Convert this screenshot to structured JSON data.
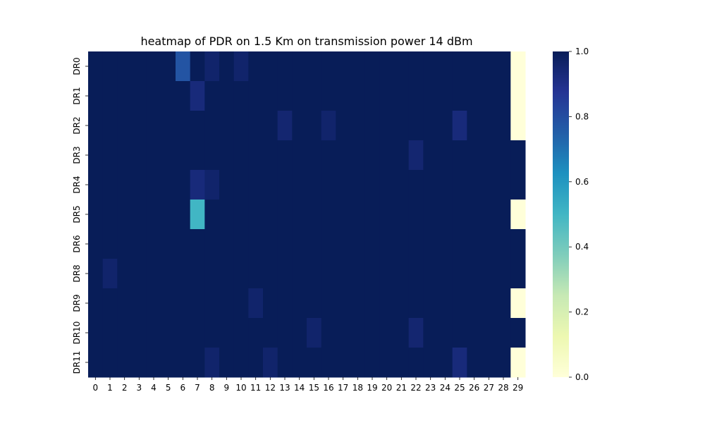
{
  "chart_data": {
    "type": "heatmap",
    "title": "heatmap of PDR on 1.5 Km on transmission power 14 dBm",
    "x_categories": [
      "0",
      "1",
      "2",
      "3",
      "4",
      "5",
      "6",
      "7",
      "8",
      "9",
      "10",
      "11",
      "12",
      "13",
      "14",
      "15",
      "16",
      "17",
      "18",
      "19",
      "20",
      "21",
      "22",
      "23",
      "24",
      "25",
      "26",
      "27",
      "28",
      "29"
    ],
    "y_categories": [
      "DR0",
      "DR1",
      "DR2",
      "DR3",
      "DR4",
      "DR5",
      "DR6",
      "DR8",
      "DR9",
      "DR10",
      "DR11"
    ],
    "values": [
      [
        1,
        1,
        1,
        1,
        1,
        1,
        0.78,
        1,
        0.96,
        1,
        0.96,
        1,
        1,
        1,
        1,
        1,
        1,
        1,
        1,
        1,
        1,
        1,
        1,
        1,
        1,
        1,
        1,
        1,
        1,
        0
      ],
      [
        1,
        1,
        1,
        1,
        1,
        1,
        1,
        0.93,
        1,
        1,
        1,
        1,
        1,
        1,
        1,
        1,
        1,
        1,
        1,
        1,
        1,
        1,
        1,
        1,
        1,
        1,
        1,
        1,
        1,
        0
      ],
      [
        1,
        1,
        1,
        1,
        1,
        1,
        1,
        1,
        1,
        1,
        1,
        1,
        1,
        0.95,
        1,
        1,
        0.96,
        1,
        1,
        1,
        1,
        1,
        1,
        1,
        1,
        0.93,
        1,
        1,
        1,
        0
      ],
      [
        1,
        1,
        1,
        1,
        1,
        1,
        1,
        1,
        1,
        1,
        1,
        1,
        1,
        1,
        1,
        1,
        1,
        1,
        1,
        1,
        1,
        1,
        0.95,
        1,
        1,
        1,
        1,
        1,
        1,
        1
      ],
      [
        1,
        1,
        1,
        1,
        1,
        1,
        1,
        0.93,
        0.96,
        1,
        1,
        1,
        1,
        1,
        1,
        1,
        1,
        1,
        1,
        1,
        1,
        1,
        1,
        1,
        1,
        1,
        1,
        1,
        1,
        1
      ],
      [
        1,
        1,
        1,
        1,
        1,
        1,
        1,
        0.5,
        1,
        1,
        1,
        1,
        1,
        1,
        1,
        1,
        1,
        1,
        1,
        1,
        1,
        1,
        1,
        1,
        1,
        1,
        1,
        1,
        1,
        0
      ],
      [
        1,
        1,
        1,
        1,
        1,
        1,
        1,
        1,
        1,
        1,
        1,
        1,
        1,
        1,
        1,
        1,
        1,
        1,
        1,
        1,
        1,
        1,
        1,
        1,
        1,
        1,
        1,
        1,
        1,
        1
      ],
      [
        1,
        0.96,
        1,
        1,
        1,
        1,
        1,
        1,
        1,
        1,
        1,
        1,
        1,
        1,
        1,
        1,
        1,
        1,
        1,
        1,
        1,
        1,
        1,
        1,
        1,
        1,
        1,
        1,
        1,
        1
      ],
      [
        1,
        1,
        1,
        1,
        1,
        1,
        1,
        1,
        1,
        1,
        1,
        0.96,
        1,
        1,
        1,
        1,
        1,
        1,
        1,
        1,
        1,
        1,
        1,
        1,
        1,
        1,
        1,
        1,
        1,
        0
      ],
      [
        1,
        1,
        1,
        1,
        1,
        1,
        1,
        1,
        1,
        1,
        1,
        1,
        1,
        1,
        1,
        0.96,
        1,
        1,
        1,
        1,
        1,
        1,
        0.95,
        1,
        1,
        1,
        1,
        1,
        1,
        1
      ],
      [
        1,
        1,
        1,
        1,
        1,
        1,
        1,
        1,
        0.96,
        1,
        1,
        1,
        0.96,
        1,
        1,
        1,
        1,
        1,
        1,
        1,
        1,
        1,
        1,
        1,
        1,
        0.93,
        1,
        1,
        1,
        0
      ]
    ],
    "colorscale": "YlGnBu",
    "colorbar": {
      "range": [
        0,
        1
      ],
      "ticks": [
        "0.0",
        "0.2",
        "0.4",
        "0.6",
        "0.8",
        "1.0"
      ]
    },
    "xlabel": "",
    "ylabel": ""
  }
}
